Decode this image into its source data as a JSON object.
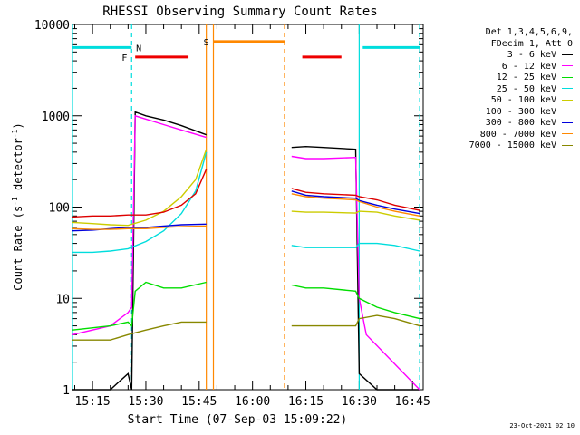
{
  "chart_data": {
    "type": "line",
    "title": "RHESSI Observing Summary Count Rates",
    "xlabel": "Start Time (07-Sep-03 15:09:22)",
    "ylabel_main": "Count Rate (s",
    "ylabel_sup1": "-1",
    "ylabel_mid": " detector",
    "ylabel_sup2": "-1",
    "ylabel_end": ")",
    "yscale": "log",
    "xlim": [
      "15:09:22",
      "16:48:00"
    ],
    "ylim": [
      1,
      10000
    ],
    "x_ticks": [
      "15:15",
      "15:30",
      "15:45",
      "16:00",
      "16:15",
      "16:30",
      "16:45"
    ],
    "y_ticks": [
      "1",
      "10",
      "100",
      "1000",
      "10000"
    ],
    "legend_header": [
      "Det 1,3,4,5,6,9,",
      "FDecim 1, Att 0"
    ],
    "gaps": [
      [
        "15:47",
        "16:11"
      ]
    ],
    "series": [
      {
        "name": "3 - 6 keV",
        "color": "#000000",
        "x": [
          "15:09:22",
          "15:20",
          "15:25",
          "15:26",
          "15:27",
          "15:30",
          "15:35",
          "15:40",
          "15:47",
          "16:11",
          "16:15",
          "16:20",
          "16:29",
          "16:30",
          "16:35",
          "16:47"
        ],
        "y": [
          1,
          1,
          1.5,
          1,
          1100,
          1000,
          900,
          780,
          620,
          450,
          460,
          450,
          430,
          1.5,
          1,
          1
        ]
      },
      {
        "name": "6 - 12 keV",
        "color": "#ff00ff",
        "x": [
          "15:09:22",
          "15:20",
          "15:25",
          "15:26",
          "15:27",
          "15:30",
          "15:35",
          "15:40",
          "15:47",
          "16:11",
          "16:15",
          "16:20",
          "16:29",
          "16:30",
          "16:32",
          "16:47"
        ],
        "y": [
          4,
          5,
          7,
          8,
          1000,
          920,
          800,
          700,
          580,
          360,
          340,
          340,
          350,
          10,
          4,
          1
        ]
      },
      {
        "name": "12 - 25 keV",
        "color": "#00dd00",
        "x": [
          "15:09:22",
          "15:20",
          "15:25",
          "15:26",
          "15:27",
          "15:30",
          "15:35",
          "15:40",
          "15:47",
          "16:11",
          "16:15",
          "16:20",
          "16:29",
          "16:30",
          "16:35",
          "16:40",
          "16:47"
        ],
        "y": [
          4.5,
          5,
          5.5,
          5,
          12,
          15,
          13,
          13,
          15,
          14,
          13,
          13,
          12,
          10,
          8,
          7,
          6
        ]
      },
      {
        "name": "25 - 50 keV",
        "color": "#00dddd",
        "x": [
          "15:09:22",
          "15:15",
          "15:20",
          "15:25",
          "15:30",
          "15:35",
          "15:40",
          "15:44",
          "15:47",
          "16:11",
          "16:15",
          "16:20",
          "16:29",
          "16:30",
          "16:35",
          "16:40",
          "16:47"
        ],
        "y": [
          32,
          32,
          33,
          35,
          42,
          55,
          85,
          150,
          400,
          38,
          36,
          36,
          36,
          40,
          40,
          38,
          33
        ]
      },
      {
        "name": "50 - 100 keV",
        "color": "#cccc00",
        "x": [
          "15:09:22",
          "15:15",
          "15:20",
          "15:25",
          "15:30",
          "15:35",
          "15:40",
          "15:44",
          "15:47",
          "16:11",
          "16:15",
          "16:20",
          "16:29",
          "16:30",
          "16:35",
          "16:40",
          "16:47"
        ],
        "y": [
          68,
          66,
          64,
          63,
          72,
          90,
          130,
          200,
          430,
          90,
          88,
          88,
          86,
          90,
          88,
          80,
          72
        ]
      },
      {
        "name": "100 - 300 keV",
        "color": "#dd0000",
        "x": [
          "15:09:22",
          "15:15",
          "15:20",
          "15:25",
          "15:30",
          "15:35",
          "15:40",
          "15:44",
          "15:47",
          "16:11",
          "16:15",
          "16:20",
          "16:29",
          "16:30",
          "16:35",
          "16:40",
          "16:47"
        ],
        "y": [
          78,
          80,
          80,
          82,
          82,
          88,
          105,
          140,
          260,
          160,
          145,
          140,
          135,
          130,
          120,
          105,
          92
        ]
      },
      {
        "name": "300 - 800 keV",
        "color": "#0000dd",
        "x": [
          "15:09:22",
          "15:15",
          "15:20",
          "15:25",
          "15:30",
          "15:35",
          "15:40",
          "15:47",
          "16:11",
          "16:15",
          "16:20",
          "16:29",
          "16:30",
          "16:35",
          "16:40",
          "16:47"
        ],
        "y": [
          55,
          56,
          58,
          60,
          60,
          62,
          64,
          65,
          150,
          135,
          130,
          125,
          118,
          105,
          95,
          85
        ]
      },
      {
        "name": "800 - 7000 keV",
        "color": "#ff8800",
        "x": [
          "15:09:22",
          "15:15",
          "15:20",
          "15:25",
          "15:30",
          "15:35",
          "15:40",
          "15:47",
          "16:11",
          "16:15",
          "16:20",
          "16:29",
          "16:30",
          "16:35",
          "16:40",
          "16:47"
        ],
        "y": [
          58,
          57,
          57,
          58,
          58,
          60,
          61,
          62,
          140,
          130,
          125,
          120,
          115,
          100,
          90,
          80
        ]
      },
      {
        "name": "7000 - 15000 keV",
        "color": "#888800",
        "x": [
          "15:09:22",
          "15:15",
          "15:20",
          "15:25",
          "15:30",
          "15:35",
          "15:40",
          "15:47",
          "16:11",
          "16:15",
          "16:20",
          "16:29",
          "16:30",
          "16:35",
          "16:40",
          "16:47"
        ],
        "y": [
          3.5,
          3.5,
          3.5,
          4,
          4.5,
          5,
          5.5,
          5.5,
          5,
          5,
          5,
          5,
          6,
          6.5,
          6,
          5
        ]
      }
    ],
    "flag_bars": [
      {
        "label": "",
        "color": "#00dddd",
        "y": 5600,
        "segments": [
          [
            "15:09:22",
            "15:26"
          ],
          [
            "16:31",
            "16:47"
          ]
        ]
      },
      {
        "label": "N",
        "color": "#00dddd",
        "y": 5600,
        "segments": []
      },
      {
        "label": "F",
        "color": "#ee0000",
        "y": 4400,
        "segments": [
          [
            "15:27",
            "15:42"
          ],
          [
            "16:14",
            "16:25"
          ]
        ]
      },
      {
        "label": "S",
        "color": "#ff8800",
        "y": 6500,
        "segments": [
          [
            "15:49",
            "16:09"
          ]
        ]
      }
    ],
    "vertical_lines": [
      {
        "x": "15:09:22",
        "color": "#00dddd",
        "style": "solid"
      },
      {
        "x": "15:26",
        "color": "#00dddd",
        "style": "dashed"
      },
      {
        "x": "15:47",
        "color": "#ff8800",
        "style": "solid"
      },
      {
        "x": "15:49",
        "color": "#ff8800",
        "style": "solid"
      },
      {
        "x": "16:09",
        "color": "#ff8800",
        "style": "dashed"
      },
      {
        "x": "16:30",
        "color": "#00dddd",
        "style": "solid"
      },
      {
        "x": "16:47",
        "color": "#00dddd",
        "style": "dashed"
      }
    ],
    "timestamp": "23-Oct-2021 02:10",
    "grid": false,
    "legend_position": "right"
  }
}
